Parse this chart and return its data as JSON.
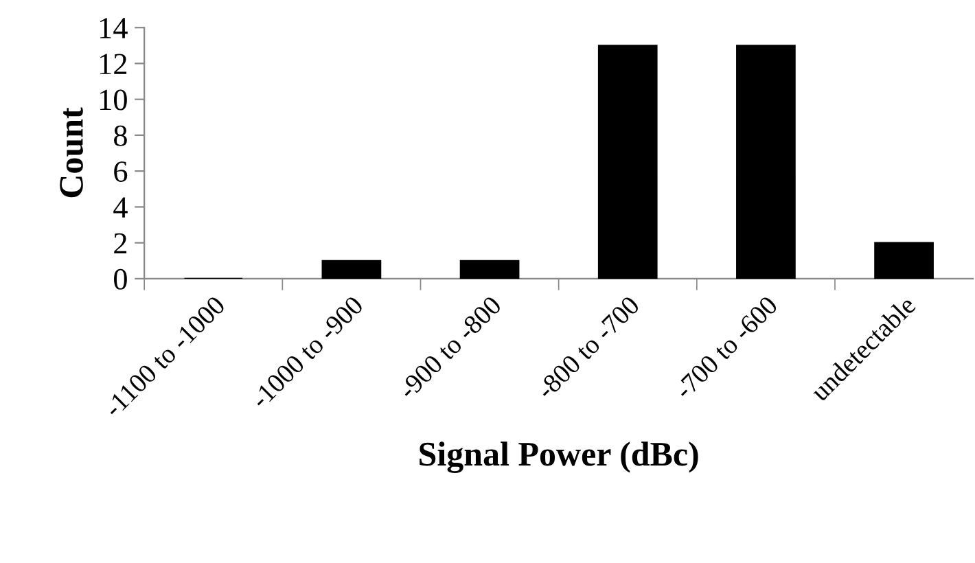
{
  "chart_data": {
    "type": "bar",
    "xlabel": "Signal Power (dBc)",
    "ylabel": "Count",
    "categories": [
      "-1100 to -1000",
      "-1000 to -900",
      "-900 to -800",
      "-800 to -700",
      "-700 to -600",
      "undetectable"
    ],
    "values": [
      0,
      1,
      1,
      13,
      13,
      2
    ],
    "color": "#000000",
    "ylim": [
      0,
      14
    ],
    "yticks": [
      0,
      2,
      4,
      6,
      8,
      10,
      12,
      14
    ],
    "grid": false,
    "legend": false
  }
}
